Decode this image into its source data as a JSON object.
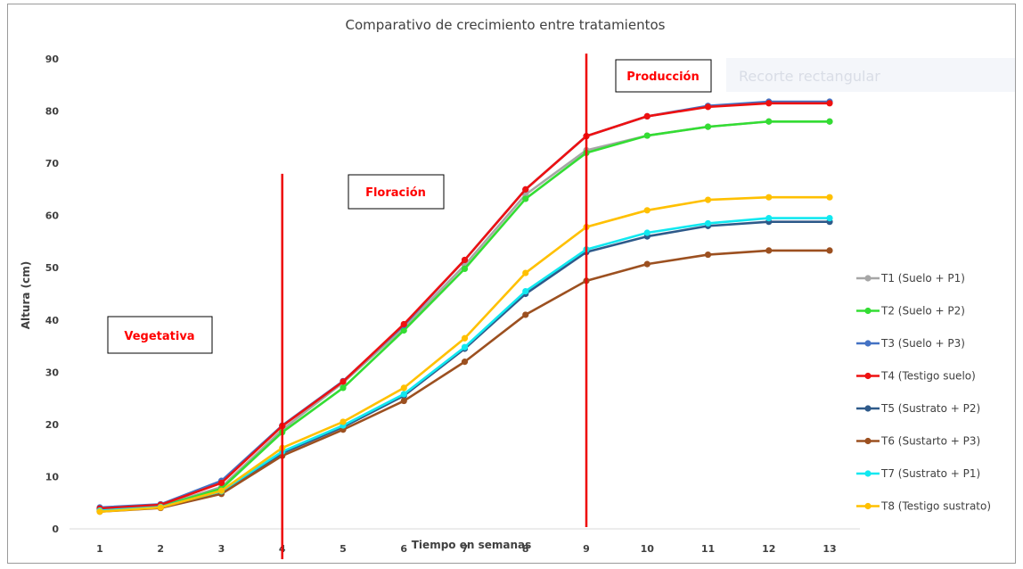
{
  "chart_data": {
    "type": "line",
    "title": "Comparativo de crecimiento entre tratamientos",
    "xlabel": "Tiempo en semanas",
    "ylabel": "Altura (cm)",
    "x": [
      1,
      2,
      3,
      4,
      5,
      6,
      7,
      8,
      9,
      10,
      11,
      12,
      13
    ],
    "ylim": [
      0,
      90
    ],
    "yticks": [
      0,
      10,
      20,
      30,
      40,
      50,
      60,
      70,
      80,
      90
    ],
    "grid": false,
    "legend_position": "right",
    "series": [
      {
        "name": "T1 (Suelo + P1)",
        "color": "#a6a6a6",
        "values": [
          3.8,
          4.4,
          8.0,
          19.0,
          28.0,
          38.5,
          50.5,
          64.0,
          72.5,
          75.3,
          77.0,
          78.0,
          78.0
        ]
      },
      {
        "name": "T2 (Suelo + P2)",
        "color": "#33dd33",
        "values": [
          3.6,
          4.3,
          7.7,
          18.5,
          27.0,
          38.0,
          49.8,
          63.2,
          72.0,
          75.3,
          77.0,
          78.0,
          78.0
        ]
      },
      {
        "name": "T3 (Suelo + P3)",
        "color": "#4472c4",
        "values": [
          4.1,
          4.7,
          9.2,
          19.8,
          28.3,
          39.0,
          51.5,
          65.0,
          75.2,
          79.0,
          81.0,
          81.8,
          81.8
        ]
      },
      {
        "name": "T4 (Testigo suelo)",
        "color": "#ee1111",
        "values": [
          3.9,
          4.6,
          8.8,
          19.7,
          28.2,
          39.2,
          51.5,
          65.0,
          75.2,
          79.0,
          80.8,
          81.5,
          81.5
        ]
      },
      {
        "name": "T5 (Sustrato + P2)",
        "color": "#2e5a8a",
        "values": [
          3.5,
          4.2,
          7.2,
          14.5,
          19.5,
          25.5,
          34.5,
          45.0,
          53.0,
          56.0,
          58.0,
          58.8,
          58.8
        ]
      },
      {
        "name": "T6 (Sustarto + P3)",
        "color": "#9c5020",
        "values": [
          3.3,
          4.0,
          6.7,
          14.0,
          19.0,
          24.5,
          32.0,
          41.0,
          47.5,
          50.7,
          52.5,
          53.3,
          53.3
        ]
      },
      {
        "name": "T7 (Sustrato + P1)",
        "color": "#11e8f0",
        "values": [
          3.5,
          4.2,
          7.2,
          14.8,
          19.8,
          25.8,
          34.8,
          45.5,
          53.5,
          56.7,
          58.5,
          59.5,
          59.5
        ]
      },
      {
        "name": "T8 (Testigo sustrato)",
        "color": "#ffc000",
        "values": [
          3.3,
          4.1,
          7.3,
          15.5,
          20.5,
          27.0,
          36.5,
          49.0,
          57.8,
          61.0,
          63.0,
          63.5,
          63.5
        ]
      }
    ],
    "phases": [
      {
        "label": "Vegetativa",
        "line_at_week": 4,
        "line_top_value": 68
      },
      {
        "label": "Floración",
        "line_at_week": 9,
        "line_top_value": 91
      },
      {
        "label": "Producción"
      }
    ]
  },
  "overlay": {
    "label": "Recorte rectangular"
  }
}
